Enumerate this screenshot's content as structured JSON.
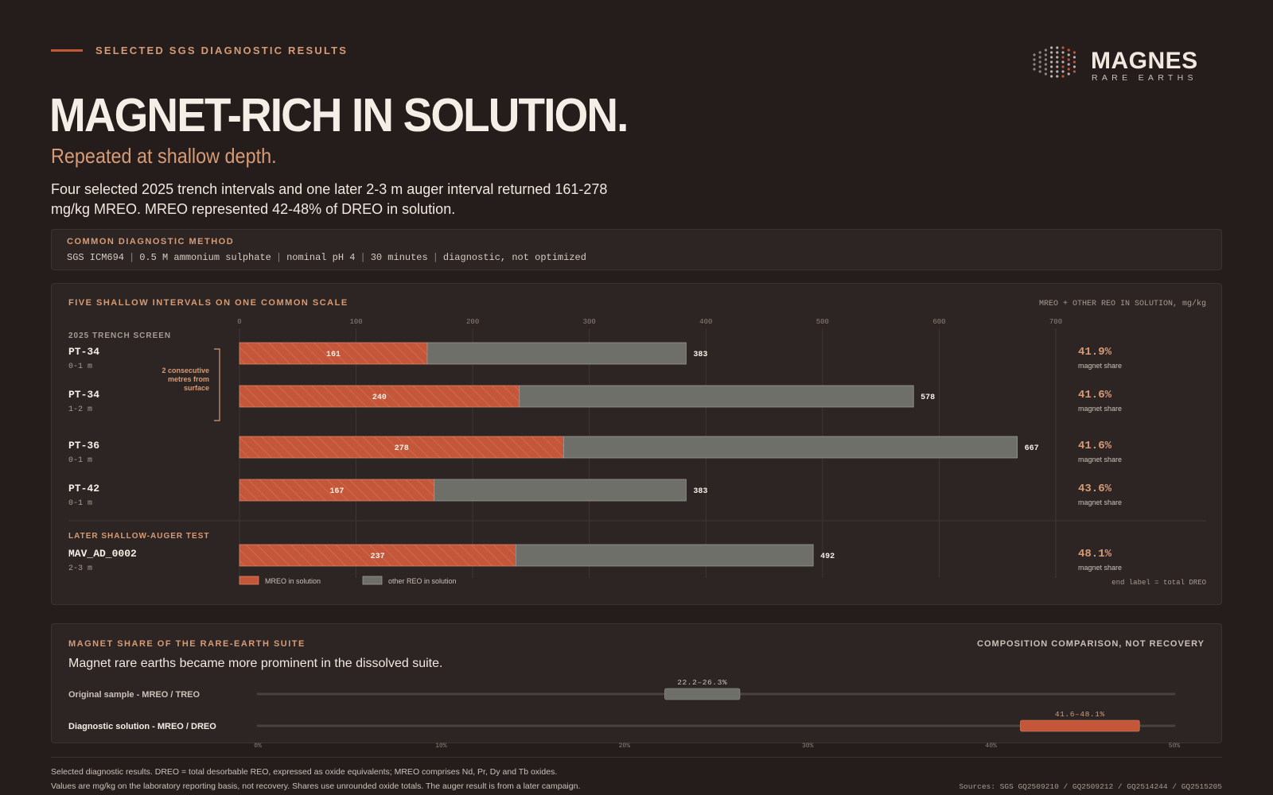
{
  "header": {
    "eyebrow": "SELECTED SGS DIAGNOSTIC RESULTS",
    "title": "MAGNET-RICH IN SOLUTION.",
    "subtitle": "Repeated at shallow depth.",
    "lead": "Four selected 2025 trench intervals and one later 2-3 m auger interval returned 161-278 mg/kg MREO. MREO represented 42-48% of DREO in solution."
  },
  "logo": {
    "word": "MAGNES",
    "sub": "RARE EARTHS"
  },
  "method": {
    "label": "COMMON DIAGNOSTIC METHOD",
    "items": [
      "SGS ICM694",
      "0.5 M ammonium sulphate",
      "nominal pH 4",
      "30 minutes",
      "diagnostic, not optimized"
    ]
  },
  "colors": {
    "accent": "#c4573a",
    "accent_text": "#d79b75",
    "other": "#6f6f6a",
    "background": "#241d1c",
    "panel": "#2d2523"
  },
  "chart_data": [
    {
      "type": "bar",
      "stacked": true,
      "orientation": "horizontal",
      "title": "FIVE SHALLOW INTERVALS ON ONE COMMON SCALE",
      "axis_note": "MREO + OTHER REO IN SOLUTION, mg/kg",
      "xlim": [
        0,
        700
      ],
      "xticks": [
        0,
        100,
        200,
        300,
        400,
        500,
        600,
        700
      ],
      "grid": true,
      "groups": [
        {
          "label": "2025 TRENCH SCREEN",
          "bracket_note": [
            "2 consecutive",
            "metres from",
            "surface"
          ]
        },
        {
          "label": "LATER SHALLOW-AUGER TEST"
        }
      ],
      "categories": [
        {
          "name": "PT-34",
          "depth": "0-1 m",
          "group": 0
        },
        {
          "name": "PT-34",
          "depth": "1-2 m",
          "group": 0
        },
        {
          "name": "PT-36",
          "depth": "0-1 m",
          "group": 0
        },
        {
          "name": "PT-42",
          "depth": "0-1 m",
          "group": 0
        },
        {
          "name": "MAV_AD_0002",
          "depth": "2-3 m",
          "group": 1
        }
      ],
      "series": [
        {
          "name": "MREO in solution",
          "values": [
            161,
            240,
            278,
            167,
            237
          ]
        },
        {
          "name": "other REO in solution",
          "values": [
            222,
            338,
            389,
            216,
            255
          ]
        }
      ],
      "totals": [
        383,
        578,
        667,
        383,
        492
      ],
      "shares": [
        "41.9%",
        "41.6%",
        "41.6%",
        "43.6%",
        "48.1%"
      ],
      "share_label": "magnet share",
      "end_note": "end label = total DREO",
      "legend": [
        "MREO in solution",
        "other REO in solution"
      ],
      "legend_position": "bottom-left"
    },
    {
      "type": "range",
      "title": "MAGNET SHARE OF THE RARE-EARTH SUITE",
      "right_note": "COMPOSITION COMPARISON, NOT RECOVERY",
      "lead": "Magnet rare earths became more prominent in the dissolved suite.",
      "xlim": [
        0,
        50
      ],
      "xticks": [
        "0%",
        "10%",
        "20%",
        "30%",
        "40%",
        "50%"
      ],
      "rows": [
        {
          "label": "Original sample - MREO / TREO",
          "low": 22.2,
          "high": 26.3,
          "range_label": "22.2–26.3%"
        },
        {
          "label": "Diagnostic solution - MREO / DREO",
          "low": 41.6,
          "high": 48.1,
          "range_label": "41.6–48.1%"
        }
      ]
    }
  ],
  "footer": {
    "line1": "Selected diagnostic results. DREO = total desorbable REO, expressed as oxide equivalents; MREO comprises Nd, Pr, Dy and Tb oxides.",
    "line2": "Values are mg/kg on the laboratory reporting basis, not recovery. Shares use unrounded oxide totals. The auger result is from a later campaign.",
    "sources": "Sources: SGS GQ2509210 / GQ2509212 / GQ2514244 / GQ2515205"
  }
}
